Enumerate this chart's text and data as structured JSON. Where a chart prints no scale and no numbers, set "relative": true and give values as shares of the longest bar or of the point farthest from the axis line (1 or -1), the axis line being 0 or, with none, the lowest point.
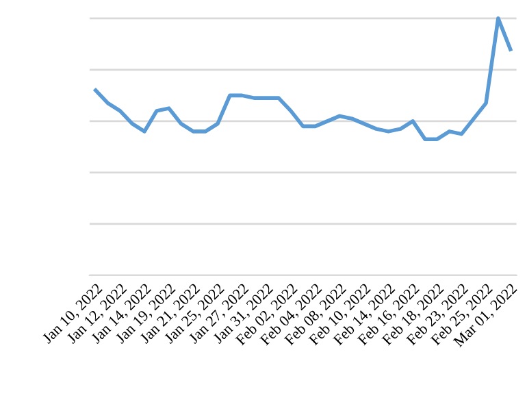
{
  "chart_data": {
    "type": "line",
    "relative": true,
    "grid": "y",
    "marker": "none",
    "line_style": "solid",
    "categories": [
      "Jan 10, 2022",
      null,
      "Jan 12, 2022",
      null,
      "Jan 14, 2022",
      null,
      "Jan 19, 2022",
      null,
      "Jan 21, 2022",
      null,
      "Jan 25, 2022",
      null,
      "Jan 27, 2022",
      null,
      "Jan 31, 2022",
      null,
      "Feb 02, 2022",
      null,
      "Feb 04, 2022",
      null,
      "Feb 08, 2022",
      null,
      "Feb 10, 2022",
      null,
      "Feb 14, 2022",
      null,
      "Feb 16, 2022",
      null,
      "Feb 18, 2022",
      null,
      "Feb 23, 2022",
      null,
      "Feb 25, 2022",
      null,
      "Mar 01, 2022"
    ],
    "series": [
      {
        "color": "#5b9bd5",
        "values": [
          0.72,
          0.67,
          0.64,
          0.59,
          0.56,
          0.64,
          0.65,
          0.59,
          0.56,
          0.56,
          0.59,
          0.7,
          0.7,
          0.69,
          0.69,
          0.69,
          0.64,
          0.58,
          0.58,
          0.6,
          0.62,
          0.61,
          0.59,
          0.57,
          0.56,
          0.57,
          0.6,
          0.53,
          0.53,
          0.56,
          0.55,
          0.61,
          0.67,
          1.0,
          0.88
        ]
      }
    ]
  }
}
